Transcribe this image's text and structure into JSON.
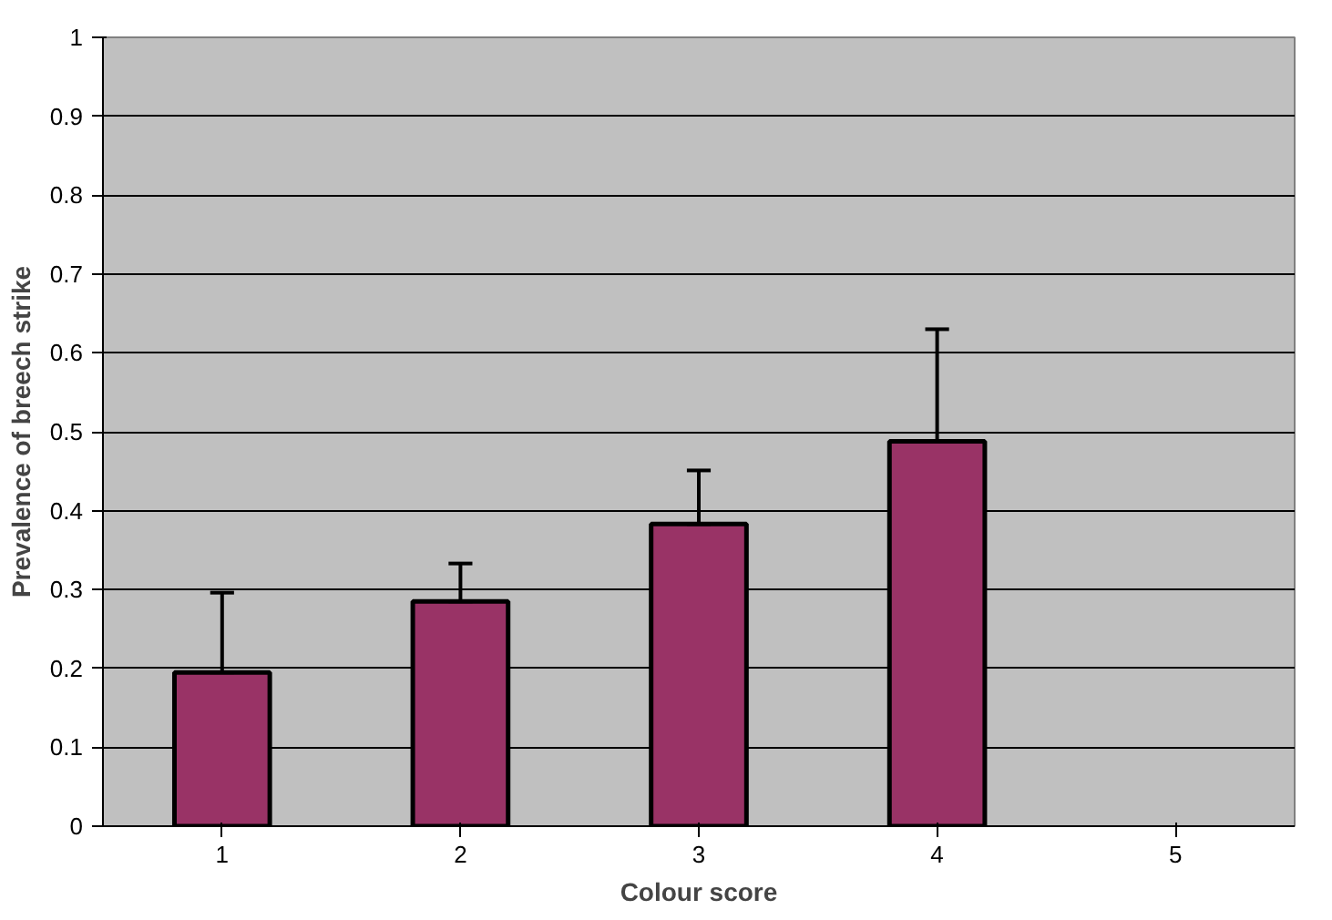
{
  "chart_data": {
    "type": "bar",
    "xlabel": "Colour score",
    "ylabel": "Prevalence of breech strike",
    "categories": [
      "1",
      "2",
      "3",
      "4",
      "5"
    ],
    "values": [
      0.195,
      0.285,
      0.383,
      0.488,
      null
    ],
    "errors": [
      [
        0.195,
        0.296
      ],
      [
        0.285,
        0.333
      ],
      [
        0.383,
        0.451
      ],
      [
        0.488,
        0.63
      ],
      null
    ],
    "color": "#993366",
    "ylim": [
      0,
      1
    ],
    "yticks": [
      0,
      0.1,
      0.2,
      0.3,
      0.4,
      0.5,
      0.6,
      0.7,
      0.8,
      0.9,
      1
    ],
    "grid": "y"
  }
}
